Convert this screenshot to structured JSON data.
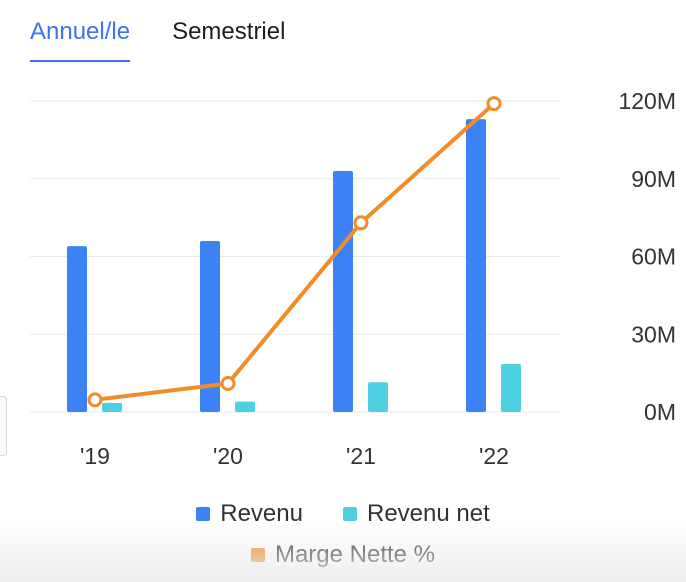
{
  "tabs": [
    {
      "label": "Annuel/le",
      "active": true
    },
    {
      "label": "Semestriel",
      "active": false
    }
  ],
  "colors": {
    "revenue": "#3b82f6",
    "net_revenue": "#4dd0e1",
    "margin": "#f28c28",
    "grid": "#e6eaf2",
    "tab_active": "#3b73f0"
  },
  "chart_data": {
    "type": "bar",
    "categories": [
      "'19",
      "'20",
      "'21",
      "'22"
    ],
    "series": [
      {
        "name": "Revenu",
        "kind": "bar",
        "axis": "left",
        "values": [
          64,
          66,
          93,
          113
        ]
      },
      {
        "name": "Revenu net",
        "kind": "bar",
        "axis": "left",
        "values": [
          3.5,
          4,
          11.5,
          18.5
        ]
      },
      {
        "name": "Marge Nette %",
        "kind": "line",
        "axis": "right",
        "values": [
          4.7,
          11,
          73,
          119
        ]
      }
    ],
    "left_axis": {
      "ylim": [
        0,
        120
      ],
      "ticks": [
        0,
        30,
        60,
        90,
        120
      ],
      "tick_labels": [],
      "shown": false
    },
    "right_axis": {
      "ylim": [
        0,
        120
      ],
      "ticks": [
        0,
        30,
        60,
        90,
        120
      ],
      "tick_labels": [
        "0M",
        "30M",
        "60M",
        "90M",
        "120M"
      ]
    },
    "grid": true,
    "legend_position": "bottom-center"
  },
  "legend": {
    "row1": [
      {
        "label": "Revenu",
        "color": "#3b82f6"
      },
      {
        "label": "Revenu net",
        "color": "#4dd0e1"
      }
    ],
    "row2": [
      {
        "label": "Marge Nette %",
        "color": "#f28c28"
      }
    ]
  }
}
